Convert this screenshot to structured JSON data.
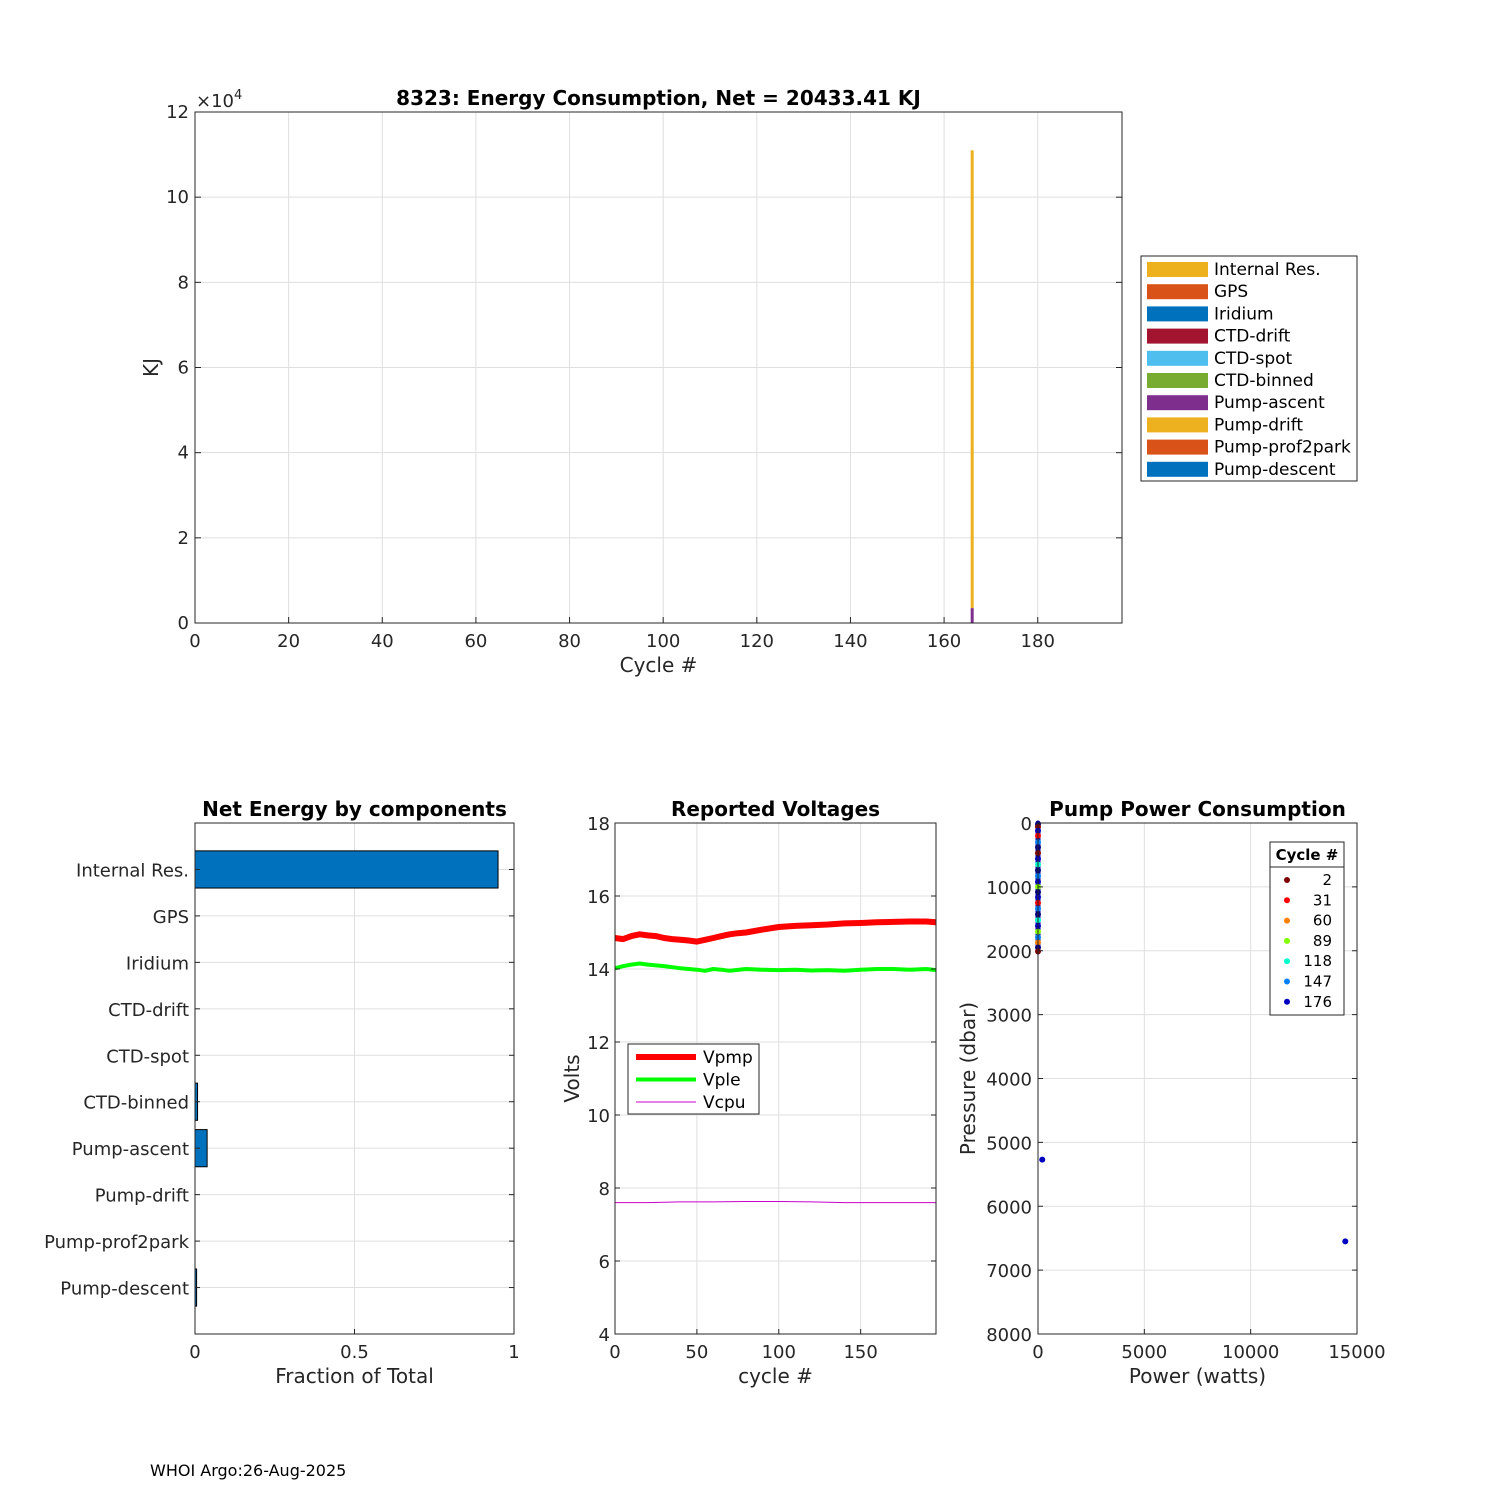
{
  "footer": "WHOI Argo:26-Aug-2025",
  "chart_data": [
    {
      "type": "bar",
      "stacked": true,
      "title": "8323: Energy Consumption,  Net = 20433.41 KJ",
      "xlabel": "Cycle #",
      "ylabel": "KJ",
      "xlim": [
        0,
        198
      ],
      "ylim": [
        0,
        120000
      ],
      "xticks": [
        0,
        20,
        40,
        60,
        80,
        100,
        120,
        140,
        160,
        180
      ],
      "yticks": [
        0,
        2,
        4,
        6,
        8,
        10,
        12
      ],
      "yexponent_label": "×10",
      "yexponent_power": "4",
      "grid": true,
      "legend_position": "outside-right",
      "legend": [
        "Internal Res.",
        "GPS",
        "Iridium",
        "CTD-drift",
        "CTD-spot",
        "CTD-binned",
        "Pump-ascent",
        "Pump-drift",
        "Pump-prof2park",
        "Pump-descent"
      ],
      "colors": [
        "#EDB120",
        "#D95319",
        "#0072BD",
        "#A2142F",
        "#4DBEEE",
        "#77AC30",
        "#7E2F8E",
        "#EDB120",
        "#D95319",
        "#0072BD"
      ],
      "bars": [
        {
          "cycle": 166,
          "segments": [
            {
              "component": "Pump-ascent",
              "value": 3500
            },
            {
              "component": "Internal Res.",
              "value": 107500
            }
          ]
        }
      ]
    },
    {
      "type": "barh",
      "title": "Net Energy by components",
      "xlabel": "Fraction of Total",
      "xlim": [
        0,
        1
      ],
      "xticks": [
        0,
        0.5,
        1
      ],
      "grid": true,
      "categories": [
        "Internal Res.",
        "GPS",
        "Iridium",
        "CTD-drift",
        "CTD-spot",
        "CTD-binned",
        "Pump-ascent",
        "Pump-drift",
        "Pump-prof2park",
        "Pump-descent"
      ],
      "values": [
        0.95,
        0.0,
        0.0,
        0.0,
        0.0,
        0.008,
        0.038,
        0.0,
        0.0,
        0.005
      ],
      "bar_color": "#0072BD"
    },
    {
      "type": "line",
      "title": "Reported Voltages",
      "xlabel": "cycle #",
      "ylabel": "Volts",
      "xlim": [
        0,
        196
      ],
      "ylim": [
        4,
        18
      ],
      "xticks": [
        0,
        50,
        100,
        150
      ],
      "yticks": [
        4,
        6,
        8,
        10,
        12,
        14,
        16,
        18
      ],
      "grid": true,
      "legend_position": "left",
      "series": [
        {
          "name": "Vpmp",
          "color": "#FF0000",
          "width": 6,
          "x": [
            0,
            5,
            10,
            15,
            20,
            25,
            30,
            35,
            40,
            45,
            50,
            55,
            60,
            65,
            70,
            75,
            80,
            90,
            100,
            110,
            120,
            130,
            140,
            150,
            160,
            170,
            180,
            190,
            196
          ],
          "y": [
            14.85,
            14.82,
            14.9,
            14.95,
            14.92,
            14.9,
            14.85,
            14.82,
            14.8,
            14.78,
            14.75,
            14.8,
            14.85,
            14.9,
            14.95,
            14.98,
            15.0,
            15.08,
            15.15,
            15.18,
            15.2,
            15.22,
            15.25,
            15.26,
            15.28,
            15.29,
            15.3,
            15.3,
            15.28
          ]
        },
        {
          "name": "Vple",
          "color": "#00FF00",
          "width": 4,
          "x": [
            0,
            5,
            10,
            15,
            20,
            25,
            30,
            35,
            40,
            45,
            50,
            55,
            60,
            65,
            70,
            80,
            90,
            100,
            110,
            120,
            130,
            140,
            150,
            160,
            170,
            180,
            190,
            196
          ],
          "y": [
            14.02,
            14.08,
            14.12,
            14.15,
            14.12,
            14.1,
            14.08,
            14.05,
            14.02,
            14.0,
            13.98,
            13.95,
            14.0,
            13.98,
            13.95,
            14.0,
            13.98,
            13.97,
            13.98,
            13.96,
            13.97,
            13.95,
            13.98,
            14.0,
            14.0,
            13.98,
            14.0,
            13.97
          ]
        },
        {
          "name": "Vcpu",
          "color": "#CC00CC",
          "width": 1,
          "x": [
            0,
            20,
            40,
            60,
            80,
            100,
            120,
            140,
            160,
            180,
            196
          ],
          "y": [
            7.6,
            7.6,
            7.62,
            7.62,
            7.63,
            7.63,
            7.62,
            7.6,
            7.6,
            7.6,
            7.6
          ]
        }
      ]
    },
    {
      "type": "scatter",
      "title": "Pump Power Consumption",
      "xlabel": "Power (watts)",
      "ylabel": "Pressure (dbar)",
      "xlim": [
        0,
        15000
      ],
      "ylim": [
        0,
        8000
      ],
      "y_reversed": true,
      "xticks": [
        0,
        5000,
        10000,
        15000
      ],
      "yticks": [
        0,
        1000,
        2000,
        3000,
        4000,
        5000,
        6000,
        7000,
        8000
      ],
      "grid": true,
      "legend_title": "Cycle #",
      "legend_position": "top-right",
      "legend": [
        {
          "label": "2",
          "color": "#800000"
        },
        {
          "label": "31",
          "color": "#FF0000"
        },
        {
          "label": "60",
          "color": "#FF8000"
        },
        {
          "label": "89",
          "color": "#80FF00"
        },
        {
          "label": "118",
          "color": "#00FFCC"
        },
        {
          "label": "147",
          "color": "#0080FF"
        },
        {
          "label": "176",
          "color": "#0000C0"
        }
      ],
      "points": [
        {
          "x": 0,
          "y": 20,
          "c": "#000080"
        },
        {
          "x": 0,
          "y": 60,
          "c": "#800000"
        },
        {
          "x": 0,
          "y": 120,
          "c": "#0000C0"
        },
        {
          "x": 0,
          "y": 200,
          "c": "#FF0000"
        },
        {
          "x": 0,
          "y": 300,
          "c": "#0080FF"
        },
        {
          "x": 0,
          "y": 380,
          "c": "#000080"
        },
        {
          "x": 0,
          "y": 470,
          "c": "#800000"
        },
        {
          "x": 0,
          "y": 560,
          "c": "#0000C0"
        },
        {
          "x": 0,
          "y": 650,
          "c": "#00FFCC"
        },
        {
          "x": 0,
          "y": 740,
          "c": "#000080"
        },
        {
          "x": 0,
          "y": 830,
          "c": "#0080FF"
        },
        {
          "x": 0,
          "y": 920,
          "c": "#0000C0"
        },
        {
          "x": 0,
          "y": 1000,
          "c": "#80FF00"
        },
        {
          "x": 0,
          "y": 1080,
          "c": "#000080"
        },
        {
          "x": 0,
          "y": 1160,
          "c": "#0000C0"
        },
        {
          "x": 0,
          "y": 1250,
          "c": "#FF0000"
        },
        {
          "x": 0,
          "y": 1340,
          "c": "#0080FF"
        },
        {
          "x": 0,
          "y": 1430,
          "c": "#000080"
        },
        {
          "x": 0,
          "y": 1520,
          "c": "#00FFCC"
        },
        {
          "x": 0,
          "y": 1610,
          "c": "#0000C0"
        },
        {
          "x": 0,
          "y": 1700,
          "c": "#80FF00"
        },
        {
          "x": 0,
          "y": 1790,
          "c": "#0080FF"
        },
        {
          "x": 0,
          "y": 1870,
          "c": "#FF8000"
        },
        {
          "x": 0,
          "y": 1950,
          "c": "#000080"
        },
        {
          "x": 0,
          "y": 2010,
          "c": "#800000"
        },
        {
          "x": 200,
          "y": 5270,
          "c": "#0000C0"
        },
        {
          "x": 14450,
          "y": 6550,
          "c": "#0000C0"
        }
      ]
    }
  ]
}
